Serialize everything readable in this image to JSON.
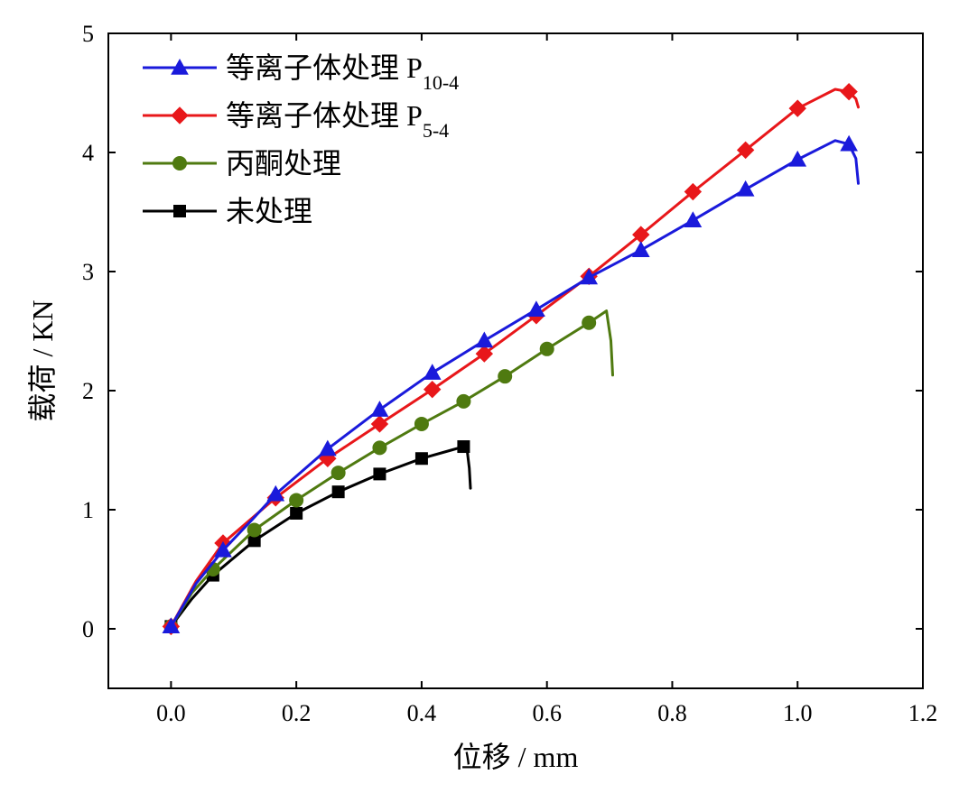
{
  "chart_data": {
    "type": "line",
    "xlabel": "位移 / mm",
    "ylabel": "载荷 / KN",
    "xlim": [
      -0.1,
      1.2
    ],
    "ylim": [
      -0.5,
      5
    ],
    "x_ticks": [
      0.0,
      0.2,
      0.4,
      0.6,
      0.8,
      1.0,
      1.2
    ],
    "x_tick_labels": [
      "0.0",
      "0.2",
      "0.4",
      "0.6",
      "0.8",
      "1.0",
      "1.2"
    ],
    "y_ticks": [
      0,
      1,
      2,
      3,
      4,
      5
    ],
    "y_tick_labels": [
      "0",
      "1",
      "2",
      "3",
      "4",
      "5"
    ],
    "grid": false,
    "legend_position": "top-left",
    "series": [
      {
        "name": "等离子体处理 P",
        "name_subscript": "10-4",
        "color": "#1a1adb",
        "marker": "triangle",
        "line": [
          [
            0.0,
            0.02
          ],
          [
            0.04,
            0.38
          ],
          [
            0.083,
            0.66
          ],
          [
            0.13,
            0.92
          ],
          [
            0.167,
            1.13
          ],
          [
            0.25,
            1.51
          ],
          [
            0.333,
            1.84
          ],
          [
            0.417,
            2.15
          ],
          [
            0.5,
            2.42
          ],
          [
            0.583,
            2.68
          ],
          [
            0.667,
            2.95
          ],
          [
            0.75,
            3.18
          ],
          [
            0.833,
            3.43
          ],
          [
            0.917,
            3.69
          ],
          [
            1.0,
            3.94
          ],
          [
            1.06,
            4.1
          ],
          [
            1.082,
            4.07
          ],
          [
            1.093,
            3.95
          ],
          [
            1.097,
            3.74
          ]
        ],
        "markers": [
          [
            0.0,
            0.02
          ],
          [
            0.083,
            0.66
          ],
          [
            0.167,
            1.13
          ],
          [
            0.25,
            1.51
          ],
          [
            0.333,
            1.84
          ],
          [
            0.417,
            2.15
          ],
          [
            0.5,
            2.42
          ],
          [
            0.583,
            2.68
          ],
          [
            0.667,
            2.95
          ],
          [
            0.75,
            3.18
          ],
          [
            0.833,
            3.43
          ],
          [
            0.917,
            3.69
          ],
          [
            1.0,
            3.94
          ],
          [
            1.082,
            4.07
          ]
        ]
      },
      {
        "name": "等离子体处理 P",
        "name_subscript": "5-4",
        "color": "#e8171a",
        "marker": "diamond",
        "line": [
          [
            0.0,
            0.02
          ],
          [
            0.04,
            0.4
          ],
          [
            0.083,
            0.72
          ],
          [
            0.167,
            1.1
          ],
          [
            0.25,
            1.43
          ],
          [
            0.333,
            1.72
          ],
          [
            0.417,
            2.01
          ],
          [
            0.5,
            2.31
          ],
          [
            0.583,
            2.63
          ],
          [
            0.667,
            2.96
          ],
          [
            0.75,
            3.31
          ],
          [
            0.833,
            3.67
          ],
          [
            0.917,
            4.02
          ],
          [
            1.0,
            4.37
          ],
          [
            1.06,
            4.53
          ],
          [
            1.082,
            4.51
          ],
          [
            1.093,
            4.45
          ],
          [
            1.097,
            4.38
          ]
        ],
        "markers": [
          [
            0.0,
            0.02
          ],
          [
            0.083,
            0.72
          ],
          [
            0.167,
            1.1
          ],
          [
            0.25,
            1.43
          ],
          [
            0.333,
            1.72
          ],
          [
            0.417,
            2.01
          ],
          [
            0.5,
            2.31
          ],
          [
            0.583,
            2.63
          ],
          [
            0.667,
            2.96
          ],
          [
            0.75,
            3.31
          ],
          [
            0.833,
            3.67
          ],
          [
            0.917,
            4.02
          ],
          [
            1.0,
            4.37
          ],
          [
            1.082,
            4.51
          ]
        ]
      },
      {
        "name": "丙酮处理",
        "color": "#4f7a10",
        "marker": "circle",
        "line": [
          [
            0.0,
            0.02
          ],
          [
            0.033,
            0.3
          ],
          [
            0.067,
            0.5
          ],
          [
            0.133,
            0.83
          ],
          [
            0.2,
            1.08
          ],
          [
            0.267,
            1.31
          ],
          [
            0.333,
            1.52
          ],
          [
            0.4,
            1.72
          ],
          [
            0.467,
            1.91
          ],
          [
            0.533,
            2.12
          ],
          [
            0.6,
            2.35
          ],
          [
            0.667,
            2.57
          ],
          [
            0.695,
            2.67
          ],
          [
            0.702,
            2.42
          ],
          [
            0.705,
            2.13
          ]
        ],
        "markers": [
          [
            0.0,
            0.02
          ],
          [
            0.067,
            0.5
          ],
          [
            0.133,
            0.83
          ],
          [
            0.2,
            1.08
          ],
          [
            0.267,
            1.31
          ],
          [
            0.333,
            1.52
          ],
          [
            0.4,
            1.72
          ],
          [
            0.467,
            1.91
          ],
          [
            0.533,
            2.12
          ],
          [
            0.6,
            2.35
          ],
          [
            0.667,
            2.57
          ]
        ]
      },
      {
        "name": "未处理",
        "color": "#000000",
        "marker": "square",
        "line": [
          [
            0.0,
            0.02
          ],
          [
            0.033,
            0.25
          ],
          [
            0.067,
            0.45
          ],
          [
            0.133,
            0.74
          ],
          [
            0.2,
            0.97
          ],
          [
            0.267,
            1.15
          ],
          [
            0.333,
            1.3
          ],
          [
            0.4,
            1.43
          ],
          [
            0.447,
            1.5
          ],
          [
            0.467,
            1.53
          ],
          [
            0.473,
            1.48
          ],
          [
            0.476,
            1.35
          ],
          [
            0.478,
            1.18
          ]
        ],
        "markers": [
          [
            0.0,
            0.02
          ],
          [
            0.067,
            0.45
          ],
          [
            0.133,
            0.74
          ],
          [
            0.2,
            0.97
          ],
          [
            0.267,
            1.15
          ],
          [
            0.333,
            1.3
          ],
          [
            0.4,
            1.43
          ],
          [
            0.467,
            1.53
          ]
        ]
      }
    ]
  }
}
